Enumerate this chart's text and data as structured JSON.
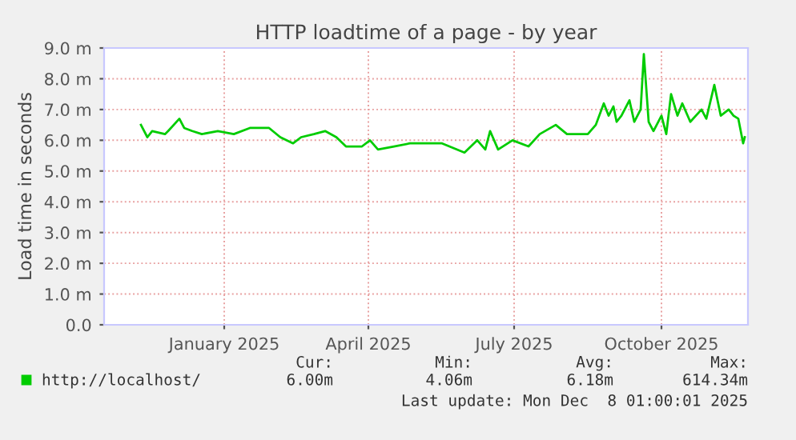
{
  "chart_data": {
    "type": "line",
    "title": "HTTP loadtime of a page - by year",
    "ylabel": "Load time in seconds",
    "x": [
      "2024-11-24",
      "2024-11-28",
      "2024-12-01",
      "2024-12-09",
      "2024-12-11",
      "2024-12-18",
      "2024-12-21",
      "2024-12-26",
      "2025-01-01",
      "2025-01-11",
      "2025-01-21",
      "2025-01-31",
      "2025-02-12",
      "2025-02-19",
      "2025-02-27",
      "2025-03-04",
      "2025-03-12",
      "2025-03-19",
      "2025-03-26",
      "2025-04-01",
      "2025-04-11",
      "2025-04-16",
      "2025-04-21",
      "2025-05-01",
      "2025-05-11",
      "2025-05-21",
      "2025-05-31",
      "2025-06-14",
      "2025-06-22",
      "2025-06-27",
      "2025-06-30",
      "2025-07-05",
      "2025-07-14",
      "2025-07-24",
      "2025-07-31",
      "2025-08-10",
      "2025-08-17",
      "2025-08-30",
      "2025-09-04",
      "2025-09-09",
      "2025-09-12",
      "2025-09-15",
      "2025-09-17",
      "2025-09-20",
      "2025-09-25",
      "2025-09-28",
      "2025-10-02",
      "2025-10-04",
      "2025-10-07",
      "2025-10-10",
      "2025-10-15",
      "2025-10-18",
      "2025-10-21",
      "2025-10-25",
      "2025-10-28",
      "2025-11-02",
      "2025-11-09",
      "2025-11-12",
      "2025-11-17",
      "2025-11-21",
      "2025-11-26",
      "2025-11-29",
      "2025-12-02",
      "2025-12-05",
      "2025-12-06"
    ],
    "series": [
      {
        "name": "http://localhost/",
        "color": "#00cc00",
        "values": [
          6.5,
          6.1,
          6.3,
          6.2,
          6.3,
          6.7,
          6.4,
          6.3,
          6.2,
          6.3,
          6.2,
          6.4,
          6.4,
          6.1,
          5.9,
          6.1,
          6.2,
          6.3,
          6.1,
          5.8,
          5.8,
          6.0,
          5.7,
          5.8,
          5.9,
          5.9,
          5.9,
          5.6,
          6.0,
          5.7,
          6.3,
          5.7,
          6.0,
          5.8,
          6.2,
          6.5,
          6.2,
          6.2,
          6.5,
          7.2,
          6.8,
          7.1,
          6.6,
          6.8,
          7.3,
          6.6,
          7.0,
          8.8,
          6.6,
          6.3,
          6.8,
          6.2,
          7.5,
          6.8,
          7.2,
          6.6,
          7.0,
          6.7,
          7.8,
          6.8,
          7.0,
          6.8,
          6.7,
          5.9,
          6.1
        ]
      }
    ],
    "xlim": [
      "2024-11-01",
      "2025-12-08"
    ],
    "xticks": [
      {
        "value": "2025-01-15",
        "label": "January 2025"
      },
      {
        "value": "2025-04-15",
        "label": "April 2025"
      },
      {
        "value": "2025-07-15",
        "label": "July 2025"
      },
      {
        "value": "2025-10-15",
        "label": "October 2025"
      }
    ],
    "ylim": [
      0,
      9
    ],
    "yticks": [
      {
        "value": 0,
        "label": "0.0"
      },
      {
        "value": 1,
        "label": "1.0 m"
      },
      {
        "value": 2,
        "label": "2.0 m"
      },
      {
        "value": 3,
        "label": "3.0 m"
      },
      {
        "value": 4,
        "label": "4.0 m"
      },
      {
        "value": 5,
        "label": "5.0 m"
      },
      {
        "value": 6,
        "label": "6.0 m"
      },
      {
        "value": 7,
        "label": "7.0 m"
      },
      {
        "value": 8,
        "label": "8.0 m"
      },
      {
        "value": 9,
        "label": "9.0 m"
      }
    ],
    "grid": true,
    "legend": "bottom",
    "annotations": [
      "Cur:",
      "Min:",
      "Avg:",
      "Max:",
      "6.00m",
      "4.06m",
      "6.18m",
      "614.34m",
      "Last update: Mon Dec  8 01:00:01 2025"
    ]
  }
}
